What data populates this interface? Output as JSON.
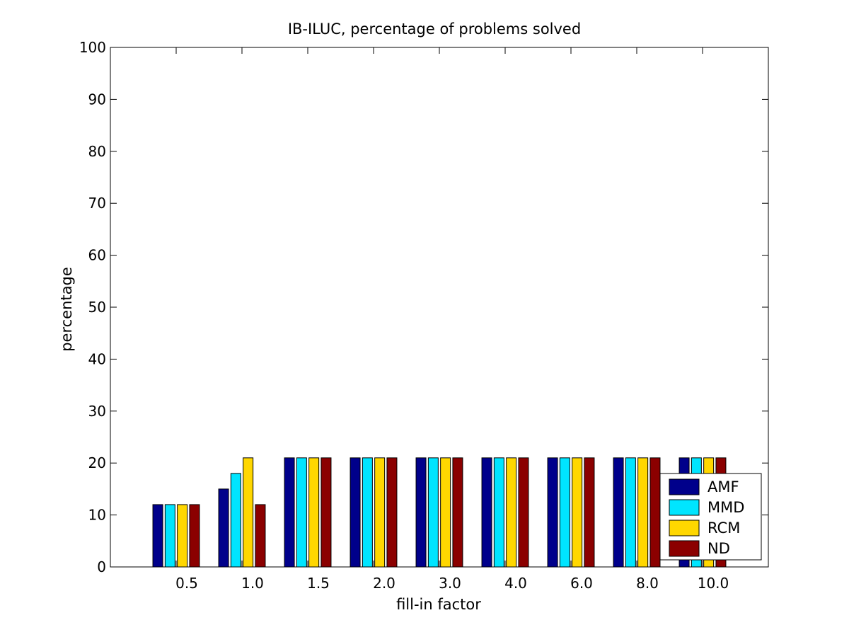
{
  "chart_data": {
    "type": "bar",
    "title": "IB-ILUC, percentage of problems solved",
    "xlabel": "fill-in factor",
    "ylabel": "percentage",
    "ylim": [
      0,
      100
    ],
    "yticks": [
      0,
      10,
      20,
      30,
      40,
      50,
      60,
      70,
      80,
      90,
      100
    ],
    "categories": [
      "0.5",
      "1.0",
      "1.5",
      "2.0",
      "3.0",
      "4.0",
      "6.0",
      "8.0",
      "10.0"
    ],
    "series": [
      {
        "name": "AMF",
        "color": "#00008b",
        "values": [
          12,
          15,
          21,
          21,
          21,
          21,
          21,
          21,
          21
        ]
      },
      {
        "name": "MMD",
        "color": "#00e5ff",
        "values": [
          12,
          18,
          21,
          21,
          21,
          21,
          21,
          21,
          21
        ]
      },
      {
        "name": "RCM",
        "color": "#ffd700",
        "values": [
          12,
          21,
          21,
          21,
          21,
          21,
          21,
          21,
          21
        ]
      },
      {
        "name": "ND",
        "color": "#8b0000",
        "values": [
          12,
          12,
          21,
          21,
          21,
          21,
          21,
          21,
          21
        ]
      }
    ],
    "grid": false,
    "legend_position": "bottom-right"
  }
}
